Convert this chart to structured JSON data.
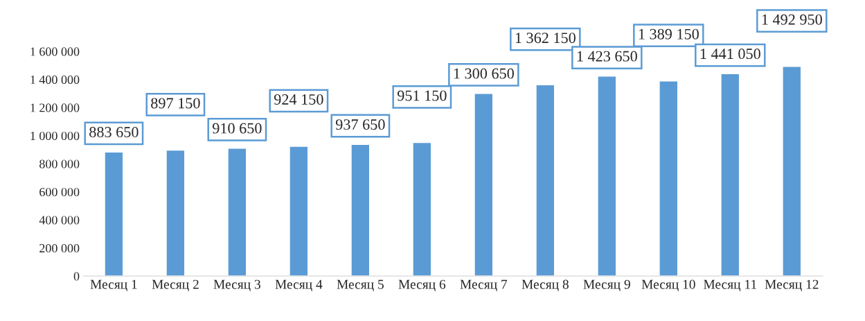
{
  "chart_data": {
    "type": "bar",
    "categories": [
      "Месяц 1",
      "Месяц 2",
      "Месяц 3",
      "Месяц 4",
      "Месяц 5",
      "Месяц 6",
      "Месяц 7",
      "Месяц 8",
      "Месяц 9",
      "Месяц 10",
      "Месяц 11",
      "Месяц 12"
    ],
    "values": [
      883650,
      897150,
      910650,
      924150,
      937650,
      951150,
      1300650,
      1362150,
      1423650,
      1389150,
      1441050,
      1492950
    ],
    "color": "#5b9bd5",
    "ylim": [
      0,
      1600000
    ],
    "yticks": [
      0,
      {
        "value": 200000,
        "label": "200 000"
      },
      {
        "value": 400000,
        "label": "400 000"
      },
      {
        "value": 600000,
        "label": "600 000"
      },
      {
        "value": 800000,
        "label": "800 000"
      },
      {
        "value": 1000000,
        "label": "1 000 000"
      },
      {
        "value": 1200000,
        "label": "1 200 000"
      },
      {
        "value": 1400000,
        "label": "1 400 000"
      },
      {
        "value": 1600000,
        "label": "1 600 000"
      }
    ],
    "data_labels": true,
    "grid": false,
    "legend": false
  }
}
